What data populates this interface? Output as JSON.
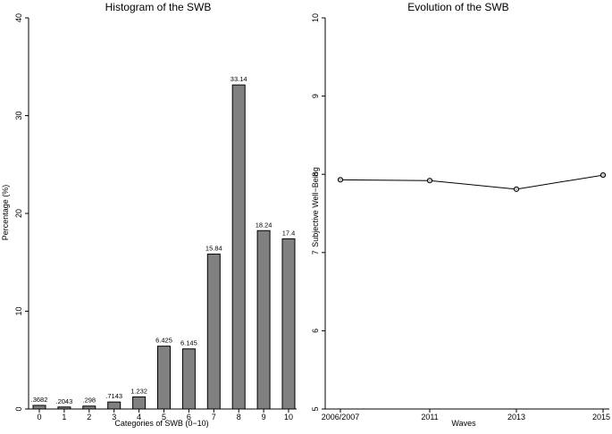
{
  "chart_data": [
    {
      "type": "bar",
      "title": "Histogram of the SWB",
      "xlabel": "Categories of SWB (0−10)",
      "ylabel": "Percentage (%)",
      "categories": [
        "0",
        "1",
        "2",
        "3",
        "4",
        "5",
        "6",
        "7",
        "8",
        "9",
        "10"
      ],
      "values": [
        0.3682,
        0.2043,
        0.298,
        0.7143,
        1.232,
        6.425,
        6.145,
        15.84,
        33.14,
        18.24,
        17.4
      ],
      "value_labels": [
        ".3682",
        ".2043",
        ".298",
        ".7143",
        "1.232",
        "6.425",
        "6.145",
        "15.84",
        "33.14",
        "18.24",
        "17.4"
      ],
      "ylim": [
        0,
        40
      ],
      "yticks": [
        "0",
        "10",
        "20",
        "30",
        "40"
      ],
      "bar_color": "#808080",
      "grid": false,
      "legend": "none"
    },
    {
      "type": "line",
      "title": "Evolution of the SWB",
      "xlabel": "Waves",
      "ylabel": "Subjective Well−Being",
      "categories": [
        "2006/2007",
        "2011",
        "2013",
        "2015"
      ],
      "x": [
        2007,
        2011,
        2013,
        2015
      ],
      "values": [
        7.93,
        7.92,
        7.81,
        7.99
      ],
      "ylim": [
        5,
        10
      ],
      "yticks": [
        "5",
        "6",
        "7",
        "8",
        "9",
        "10"
      ],
      "marker": "hollow-circle",
      "grid": false,
      "legend": "none"
    }
  ]
}
